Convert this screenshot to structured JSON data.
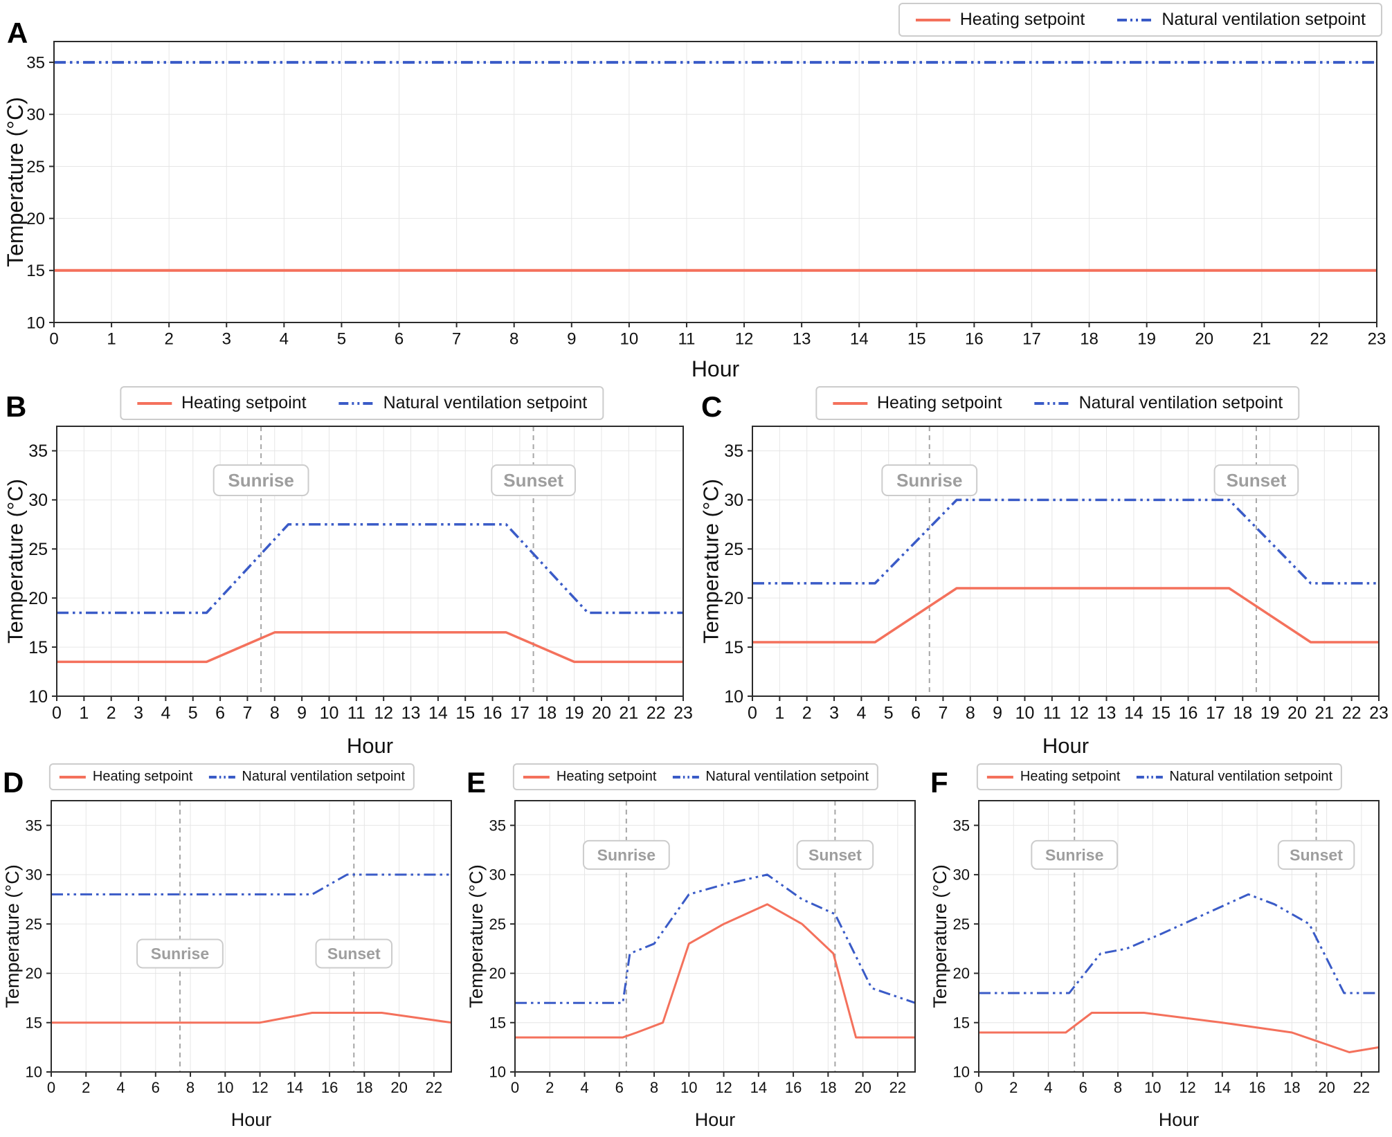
{
  "legend": {
    "heating": "Heating setpoint",
    "ventilation": "Natural ventilation setpoint"
  },
  "colors": {
    "heating": "#f4715c",
    "ventilation": "#3a5bc7",
    "grid": "#e6e6e6",
    "axis": "#2b2b2b",
    "tick_text": "#111111",
    "sun_line": "#a6a6a6",
    "annotation_text": "#9e9e9e",
    "annotation_border": "#cccccc"
  },
  "chart_data": [
    {
      "panel_label": "A",
      "type": "line",
      "xlabel": "Hour",
      "ylabel": "Temperature (°C)",
      "xlim": [
        0,
        23
      ],
      "ylim": [
        10,
        37
      ],
      "xticks": [
        0,
        1,
        2,
        3,
        4,
        5,
        6,
        7,
        8,
        9,
        10,
        11,
        12,
        13,
        14,
        15,
        16,
        17,
        18,
        19,
        20,
        21,
        22,
        23
      ],
      "yticks": [
        10,
        15,
        20,
        25,
        30,
        35
      ],
      "grid": true,
      "legend_position": "top-right",
      "vlines": [],
      "series": [
        {
          "name": "Heating setpoint",
          "key": "heating",
          "dash": "solid",
          "points": [
            [
              0,
              15
            ],
            [
              23,
              15
            ]
          ]
        },
        {
          "name": "Natural ventilation setpoint",
          "key": "ventilation",
          "dash": "dashdot",
          "points": [
            [
              0,
              35
            ],
            [
              23,
              35
            ]
          ]
        }
      ]
    },
    {
      "panel_label": "B",
      "type": "line",
      "xlabel": "Hour",
      "ylabel": "Temperature (°C)",
      "xlim": [
        0,
        23
      ],
      "ylim": [
        10,
        37.5
      ],
      "xticks": [
        0,
        1,
        2,
        3,
        4,
        5,
        6,
        7,
        8,
        9,
        10,
        11,
        12,
        13,
        14,
        15,
        16,
        17,
        18,
        19,
        20,
        21,
        22,
        23
      ],
      "yticks": [
        10,
        15,
        20,
        25,
        30,
        35
      ],
      "grid": true,
      "legend_position": "top-center",
      "vlines": [
        {
          "x": 7.5,
          "label": "Sunrise",
          "label_y": 32
        },
        {
          "x": 17.5,
          "label": "Sunset",
          "label_y": 32
        }
      ],
      "series": [
        {
          "name": "Heating setpoint",
          "key": "heating",
          "dash": "solid",
          "points": [
            [
              0,
              13.5
            ],
            [
              5.5,
              13.5
            ],
            [
              8,
              16.5
            ],
            [
              16.5,
              16.5
            ],
            [
              19,
              13.5
            ],
            [
              23,
              13.5
            ]
          ]
        },
        {
          "name": "Natural ventilation setpoint",
          "key": "ventilation",
          "dash": "dashdot",
          "points": [
            [
              0,
              18.5
            ],
            [
              5.5,
              18.5
            ],
            [
              8.5,
              27.5
            ],
            [
              16.5,
              27.5
            ],
            [
              19.5,
              18.5
            ],
            [
              23,
              18.5
            ]
          ]
        }
      ]
    },
    {
      "panel_label": "C",
      "type": "line",
      "xlabel": "Hour",
      "ylabel": "Temperature (°C)",
      "xlim": [
        0,
        23
      ],
      "ylim": [
        10,
        37.5
      ],
      "xticks": [
        0,
        1,
        2,
        3,
        4,
        5,
        6,
        7,
        8,
        9,
        10,
        11,
        12,
        13,
        14,
        15,
        16,
        17,
        18,
        19,
        20,
        21,
        22,
        23
      ],
      "yticks": [
        10,
        15,
        20,
        25,
        30,
        35
      ],
      "grid": true,
      "legend_position": "top-center",
      "vlines": [
        {
          "x": 6.5,
          "label": "Sunrise",
          "label_y": 32
        },
        {
          "x": 18.5,
          "label": "Sunset",
          "label_y": 32
        }
      ],
      "series": [
        {
          "name": "Heating setpoint",
          "key": "heating",
          "dash": "solid",
          "points": [
            [
              0,
              15.5
            ],
            [
              4.5,
              15.5
            ],
            [
              7.5,
              21
            ],
            [
              17.5,
              21
            ],
            [
              20.5,
              15.5
            ],
            [
              23,
              15.5
            ]
          ]
        },
        {
          "name": "Natural ventilation setpoint",
          "key": "ventilation",
          "dash": "dashdot",
          "points": [
            [
              0,
              21.5
            ],
            [
              4.5,
              21.5
            ],
            [
              7.5,
              30
            ],
            [
              17.5,
              30
            ],
            [
              20.5,
              21.5
            ],
            [
              23,
              21.5
            ]
          ]
        }
      ]
    },
    {
      "panel_label": "D",
      "type": "line",
      "xlabel": "Hour",
      "ylabel": "Temperature (°C)",
      "xlim": [
        0,
        23
      ],
      "ylim": [
        10,
        37.5
      ],
      "xticks": [
        0,
        2,
        4,
        6,
        8,
        10,
        12,
        14,
        16,
        18,
        20,
        22
      ],
      "yticks": [
        10,
        15,
        20,
        25,
        30,
        35
      ],
      "grid": true,
      "legend_position": "top-center",
      "vlines": [
        {
          "x": 7.4,
          "label": "Sunrise",
          "label_y": 22
        },
        {
          "x": 17.4,
          "label": "Sunset",
          "label_y": 22
        }
      ],
      "series": [
        {
          "name": "Heating setpoint",
          "key": "heating",
          "dash": "solid",
          "points": [
            [
              0,
              15
            ],
            [
              12,
              15
            ],
            [
              15,
              16
            ],
            [
              19,
              16
            ],
            [
              23,
              15
            ]
          ]
        },
        {
          "name": "Natural ventilation setpoint",
          "key": "ventilation",
          "dash": "dashdot",
          "points": [
            [
              0,
              28
            ],
            [
              15,
              28
            ],
            [
              17,
              30
            ],
            [
              23,
              30
            ]
          ]
        }
      ]
    },
    {
      "panel_label": "E",
      "type": "line",
      "xlabel": "Hour",
      "ylabel": "Temperature (°C)",
      "xlim": [
        0,
        23
      ],
      "ylim": [
        10,
        37.5
      ],
      "xticks": [
        0,
        2,
        4,
        6,
        8,
        10,
        12,
        14,
        16,
        18,
        20,
        22
      ],
      "yticks": [
        10,
        15,
        20,
        25,
        30,
        35
      ],
      "grid": true,
      "legend_position": "top-center",
      "vlines": [
        {
          "x": 6.4,
          "label": "Sunrise",
          "label_y": 32
        },
        {
          "x": 18.4,
          "label": "Sunset",
          "label_y": 32
        }
      ],
      "series": [
        {
          "name": "Heating setpoint",
          "key": "heating",
          "dash": "solid",
          "points": [
            [
              0,
              13.5
            ],
            [
              6.2,
              13.5
            ],
            [
              7,
              14
            ],
            [
              8.5,
              15
            ],
            [
              10,
              23
            ],
            [
              12,
              25
            ],
            [
              14.5,
              27
            ],
            [
              16.5,
              25
            ],
            [
              18.3,
              22
            ],
            [
              19.6,
              13.5
            ],
            [
              23,
              13.5
            ]
          ]
        },
        {
          "name": "Natural ventilation setpoint",
          "key": "ventilation",
          "dash": "dashdot",
          "points": [
            [
              0,
              17
            ],
            [
              6.2,
              17
            ],
            [
              6.6,
              22
            ],
            [
              8,
              23
            ],
            [
              10,
              28
            ],
            [
              12,
              29
            ],
            [
              14.5,
              30
            ],
            [
              16.5,
              27.5
            ],
            [
              18.4,
              26
            ],
            [
              20.5,
              18.5
            ],
            [
              23,
              17
            ]
          ]
        }
      ]
    },
    {
      "panel_label": "F",
      "type": "line",
      "xlabel": "Hour",
      "ylabel": "Temperature (°C)",
      "xlim": [
        0,
        23
      ],
      "ylim": [
        10,
        37.5
      ],
      "xticks": [
        0,
        2,
        4,
        6,
        8,
        10,
        12,
        14,
        16,
        18,
        20,
        22
      ],
      "yticks": [
        10,
        15,
        20,
        25,
        30,
        35
      ],
      "grid": true,
      "legend_position": "top-center",
      "vlines": [
        {
          "x": 5.5,
          "label": "Sunrise",
          "label_y": 32
        },
        {
          "x": 19.4,
          "label": "Sunset",
          "label_y": 32
        }
      ],
      "series": [
        {
          "name": "Heating setpoint",
          "key": "heating",
          "dash": "solid",
          "points": [
            [
              0,
              14
            ],
            [
              5,
              14
            ],
            [
              6.5,
              16
            ],
            [
              9.5,
              16
            ],
            [
              14,
              15
            ],
            [
              18,
              14
            ],
            [
              21.3,
              12
            ],
            [
              23,
              12.5
            ]
          ]
        },
        {
          "name": "Natural ventilation setpoint",
          "key": "ventilation",
          "dash": "dashdot",
          "points": [
            [
              0,
              18
            ],
            [
              5.2,
              18
            ],
            [
              7,
              22
            ],
            [
              8.5,
              22.5
            ],
            [
              10.5,
              24
            ],
            [
              13,
              26
            ],
            [
              15.5,
              28
            ],
            [
              17,
              27
            ],
            [
              19,
              25
            ],
            [
              21,
              18
            ],
            [
              23,
              18
            ]
          ]
        }
      ]
    }
  ]
}
